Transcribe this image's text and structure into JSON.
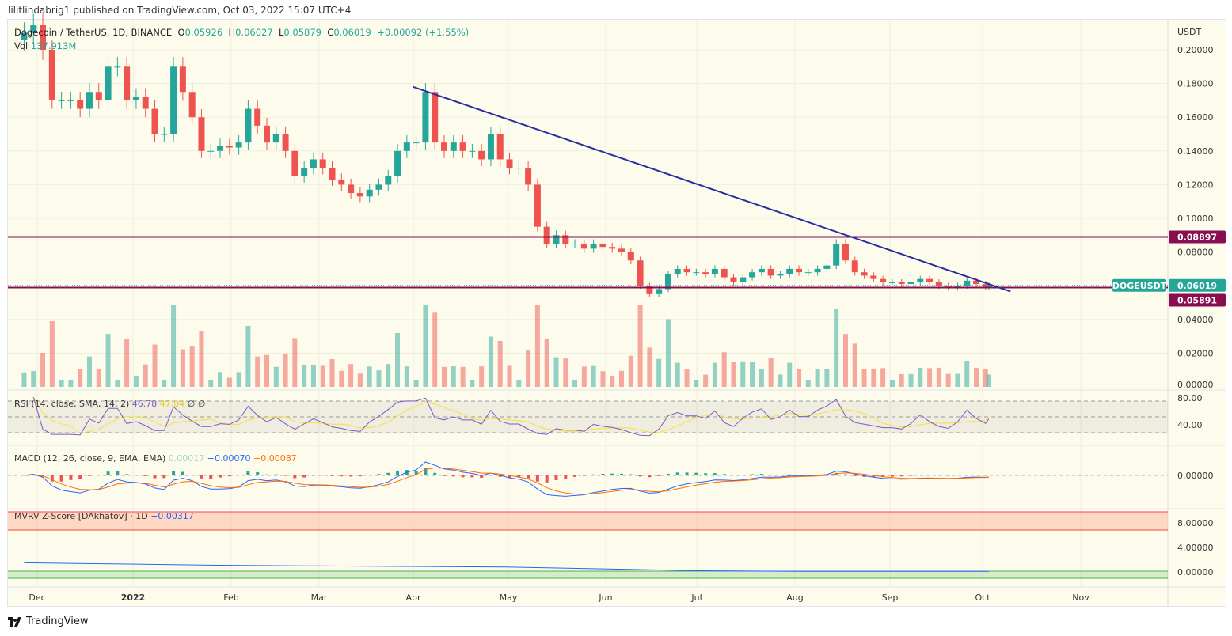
{
  "publisher": "lilitlindabrig1 published on TradingView.com, Oct 03, 2022 15:07 UTC+4",
  "legend": {
    "symbol": "Dogecoin / TetherUS, 1D, BINANCE",
    "open_label": "O",
    "open": "0.05926",
    "high_label": "H",
    "high": "0.06027",
    "low_label": "L",
    "low": "0.05879",
    "close_label": "C",
    "close": "0.06019",
    "change": "+0.00092 (+1.55%)",
    "vol_label": "Vol",
    "vol": "137.913M"
  },
  "rsi": {
    "label": "RSI (14, close, SMA, 14, 2)",
    "value": "46.78",
    "sma": "47.04",
    "extra": "∅ ∅",
    "ticks": [
      "80.00",
      "40.00"
    ]
  },
  "macd": {
    "label": "MACD (12, 26, close, 9, EMA, EMA)",
    "hist": "0.00017",
    "macd": "−0.00070",
    "signal": "−0.00087",
    "ticks": [
      "0.00000"
    ]
  },
  "mvrv": {
    "label": "MVRV Z-Score [DAkhatov] · 1D",
    "value": "−0.00317",
    "ticks": [
      "8.00000",
      "4.00000",
      "0.00000"
    ]
  },
  "price_axis": {
    "unit": "USDT",
    "ticks": [
      "0.20000",
      "0.18000",
      "0.16000",
      "0.14000",
      "0.12000",
      "0.10000",
      "0.08000",
      "0.04000",
      "0.02000",
      "0.00000"
    ]
  },
  "badges": {
    "resistance": "0.08897",
    "symbol": "DOGEUSDT",
    "last": "0.06019",
    "support": "0.05891"
  },
  "time_axis": [
    "Dec",
    "2022",
    "Feb",
    "Mar",
    "Apr",
    "May",
    "Jun",
    "Jul",
    "Aug",
    "Sep",
    "Oct",
    "Nov"
  ],
  "footer": "TradingView",
  "colors": {
    "up": "#26a69a",
    "down": "#ef5350",
    "trendline": "#2a2e9f",
    "level": "#880e4f",
    "rsi": "#7e57c2",
    "rsi_sma": "#f5e13b",
    "macd": "#2962ff",
    "signal": "#ff6d00"
  },
  "chart_data": {
    "type": "candlestick",
    "title": "Dogecoin / TetherUS, 1D, BINANCE",
    "ylabel": "USDT",
    "ylim": [
      0,
      0.21
    ],
    "dates": [
      "2021-11-27",
      "2021-11-30",
      "2021-12-03",
      "2021-12-06",
      "2021-12-09",
      "2021-12-12",
      "2021-12-15",
      "2021-12-18",
      "2021-12-21",
      "2021-12-24",
      "2021-12-27",
      "2021-12-30",
      "2022-01-02",
      "2022-01-05",
      "2022-01-08",
      "2022-01-11",
      "2022-01-14",
      "2022-01-17",
      "2022-01-20",
      "2022-01-23",
      "2022-01-26",
      "2022-01-29",
      "2022-02-01",
      "2022-02-04",
      "2022-02-07",
      "2022-02-10",
      "2022-02-13",
      "2022-02-16",
      "2022-02-19",
      "2022-02-22",
      "2022-02-25",
      "2022-02-28",
      "2022-03-03",
      "2022-03-06",
      "2022-03-09",
      "2022-03-12",
      "2022-03-15",
      "2022-03-18",
      "2022-03-21",
      "2022-03-24",
      "2022-03-27",
      "2022-03-30",
      "2022-04-02",
      "2022-04-05",
      "2022-04-08",
      "2022-04-11",
      "2022-04-14",
      "2022-04-17",
      "2022-04-20",
      "2022-04-23",
      "2022-04-26",
      "2022-04-29",
      "2022-05-02",
      "2022-05-05",
      "2022-05-08",
      "2022-05-11",
      "2022-05-14",
      "2022-05-17",
      "2022-05-20",
      "2022-05-23",
      "2022-05-26",
      "2022-05-29",
      "2022-06-01",
      "2022-06-04",
      "2022-06-07",
      "2022-06-10",
      "2022-06-13",
      "2022-06-16",
      "2022-06-19",
      "2022-06-22",
      "2022-06-25",
      "2022-06-28",
      "2022-07-01",
      "2022-07-04",
      "2022-07-07",
      "2022-07-10",
      "2022-07-13",
      "2022-07-16",
      "2022-07-19",
      "2022-07-22",
      "2022-07-25",
      "2022-07-28",
      "2022-07-31",
      "2022-08-03",
      "2022-08-06",
      "2022-08-09",
      "2022-08-12",
      "2022-08-15",
      "2022-08-18",
      "2022-08-21",
      "2022-08-24",
      "2022-08-27",
      "2022-08-30",
      "2022-09-02",
      "2022-09-05",
      "2022-09-08",
      "2022-09-11",
      "2022-09-14",
      "2022-09-17",
      "2022-09-20",
      "2022-09-23",
      "2022-09-26",
      "2022-09-29",
      "2022-10-02",
      "2022-10-03"
    ],
    "close": [
      0.21,
      0.215,
      0.2,
      0.17,
      0.17,
      0.17,
      0.165,
      0.175,
      0.17,
      0.19,
      0.19,
      0.17,
      0.172,
      0.165,
      0.15,
      0.15,
      0.19,
      0.175,
      0.16,
      0.14,
      0.14,
      0.143,
      0.142,
      0.145,
      0.165,
      0.155,
      0.145,
      0.15,
      0.14,
      0.125,
      0.13,
      0.135,
      0.13,
      0.123,
      0.12,
      0.115,
      0.113,
      0.117,
      0.12,
      0.125,
      0.14,
      0.145,
      0.145,
      0.175,
      0.145,
      0.14,
      0.145,
      0.14,
      0.14,
      0.135,
      0.15,
      0.135,
      0.13,
      0.13,
      0.12,
      0.095,
      0.085,
      0.09,
      0.085,
      0.085,
      0.082,
      0.085,
      0.083,
      0.082,
      0.08,
      0.075,
      0.06,
      0.055,
      0.058,
      0.067,
      0.07,
      0.068,
      0.068,
      0.067,
      0.07,
      0.065,
      0.062,
      0.065,
      0.068,
      0.07,
      0.066,
      0.067,
      0.07,
      0.068,
      0.068,
      0.07,
      0.072,
      0.085,
      0.075,
      0.068,
      0.066,
      0.064,
      0.062,
      0.062,
      0.061,
      0.062,
      0.064,
      0.062,
      0.06,
      0.059,
      0.06,
      0.063,
      0.061,
      0.0593,
      0.06019
    ],
    "levels": [
      0.08897,
      0.05891
    ],
    "trendline": [
      [
        "2022-04-01",
        0.178
      ],
      [
        "2022-10-10",
        0.0566
      ]
    ],
    "mvrv": [
      1.5,
      1.3,
      1.1,
      1.0,
      0.9,
      0.8,
      0.5,
      0.2,
      0.1,
      0.1,
      0.1
    ]
  }
}
